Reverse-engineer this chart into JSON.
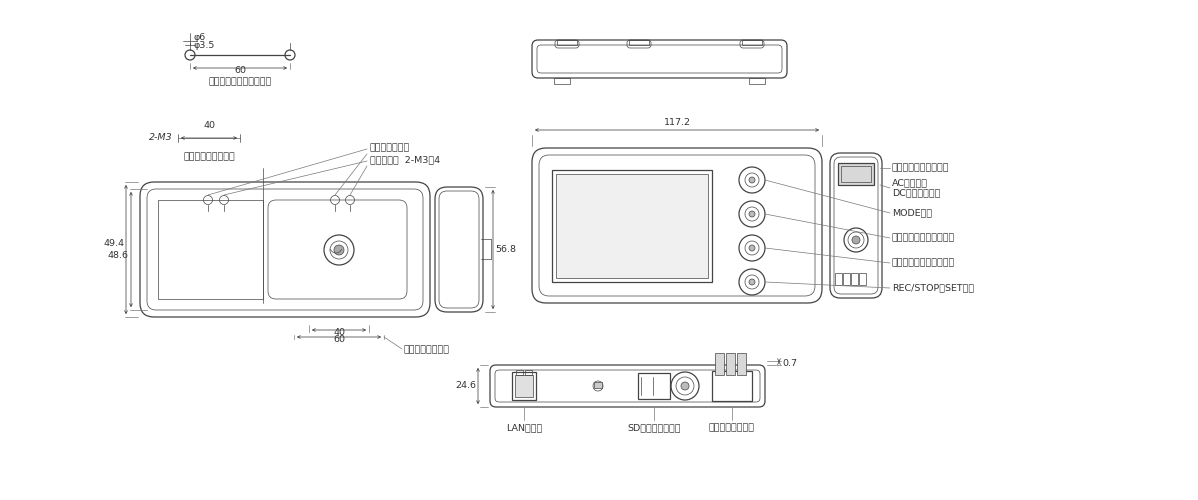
{
  "bg_color": "#ffffff",
  "line_color": "#444444",
  "dim_color": "#444444",
  "text_color": "#333333",
  "annotations": {
    "phi6": "φ6",
    "phi35": "φ3.5",
    "dim60_top": "60",
    "label_screw_pull": "ネジ引っ掛け穴加工寸法",
    "dim_2M3": "2-M3",
    "dim40": "40",
    "label_mount_hole": "取付ネジ穴加工寸法",
    "label_screw_hook": "ネジ引っ掛け穴",
    "label_mount_screw": "取付ネジ穴  2-M3深4",
    "dim494": "49.4",
    "dim486": "48.6",
    "dim40b": "40",
    "dim60b": "60",
    "label_reset": "リセットスイッチ",
    "dim1172": "117.2",
    "dim568": "56.8",
    "label_sensor": "センサヘッドコネクタ",
    "label_ac": "ACアダプタ",
    "label_dc": "DCケーブル端子",
    "label_mode": "MODEキー",
    "label_up": "項目選択キー（上方向）",
    "label_down": "項目選択キー（下方向）",
    "label_rec": "REC/STOP・SETキー",
    "dim07": "0.7",
    "dim246": "24.6",
    "label_lan": "LANポート",
    "label_sd": "SDカードスロット",
    "label_alarm": "アラーム出力端子"
  }
}
